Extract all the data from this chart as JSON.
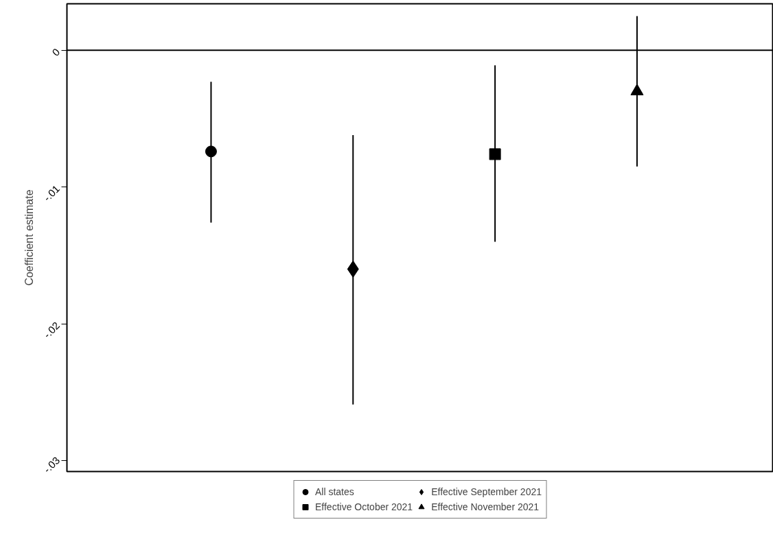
{
  "chart_data": {
    "type": "scatter",
    "ylabel": "Coefficient estimate",
    "categories": [
      null,
      null,
      null,
      null
    ],
    "series": [
      {
        "name": "All states",
        "color": "#000000",
        "marker": "circle",
        "values": [
          -0.0074,
          null,
          null,
          null
        ],
        "errors": [
          [
            -0.0126,
            -0.0023
          ],
          null,
          null,
          null
        ]
      },
      {
        "name": "Effective September 2021",
        "color": "#000000",
        "marker": "diamond",
        "values": [
          null,
          -0.016,
          null,
          null
        ],
        "errors": [
          null,
          [
            -0.0259,
            -0.0062
          ],
          null,
          null
        ]
      },
      {
        "name": "Effective October 2021",
        "color": "#000000",
        "marker": "square",
        "values": [
          null,
          null,
          -0.0076,
          null
        ],
        "errors": [
          null,
          null,
          [
            -0.014,
            -0.0011
          ],
          null
        ]
      },
      {
        "name": "Effective November 2021",
        "color": "#000000",
        "marker": "triangle",
        "values": [
          null,
          null,
          null,
          -0.003
        ],
        "errors": [
          null,
          null,
          null,
          [
            -0.0085,
            0.0025
          ]
        ]
      }
    ],
    "ylim": [
      -0.0308,
      0.0034
    ],
    "yticks": [
      {
        "value": -0.03,
        "label": "-.03"
      },
      {
        "value": -0.02,
        "label": "-.02"
      },
      {
        "value": -0.01,
        "label": "-.01"
      },
      0
    ],
    "ref_lines": [
      {
        "axis": "y",
        "value": 0,
        "label": null,
        "color": "#000000"
      }
    ],
    "tick_labels": "y",
    "grid": false,
    "legend": "bottom"
  }
}
